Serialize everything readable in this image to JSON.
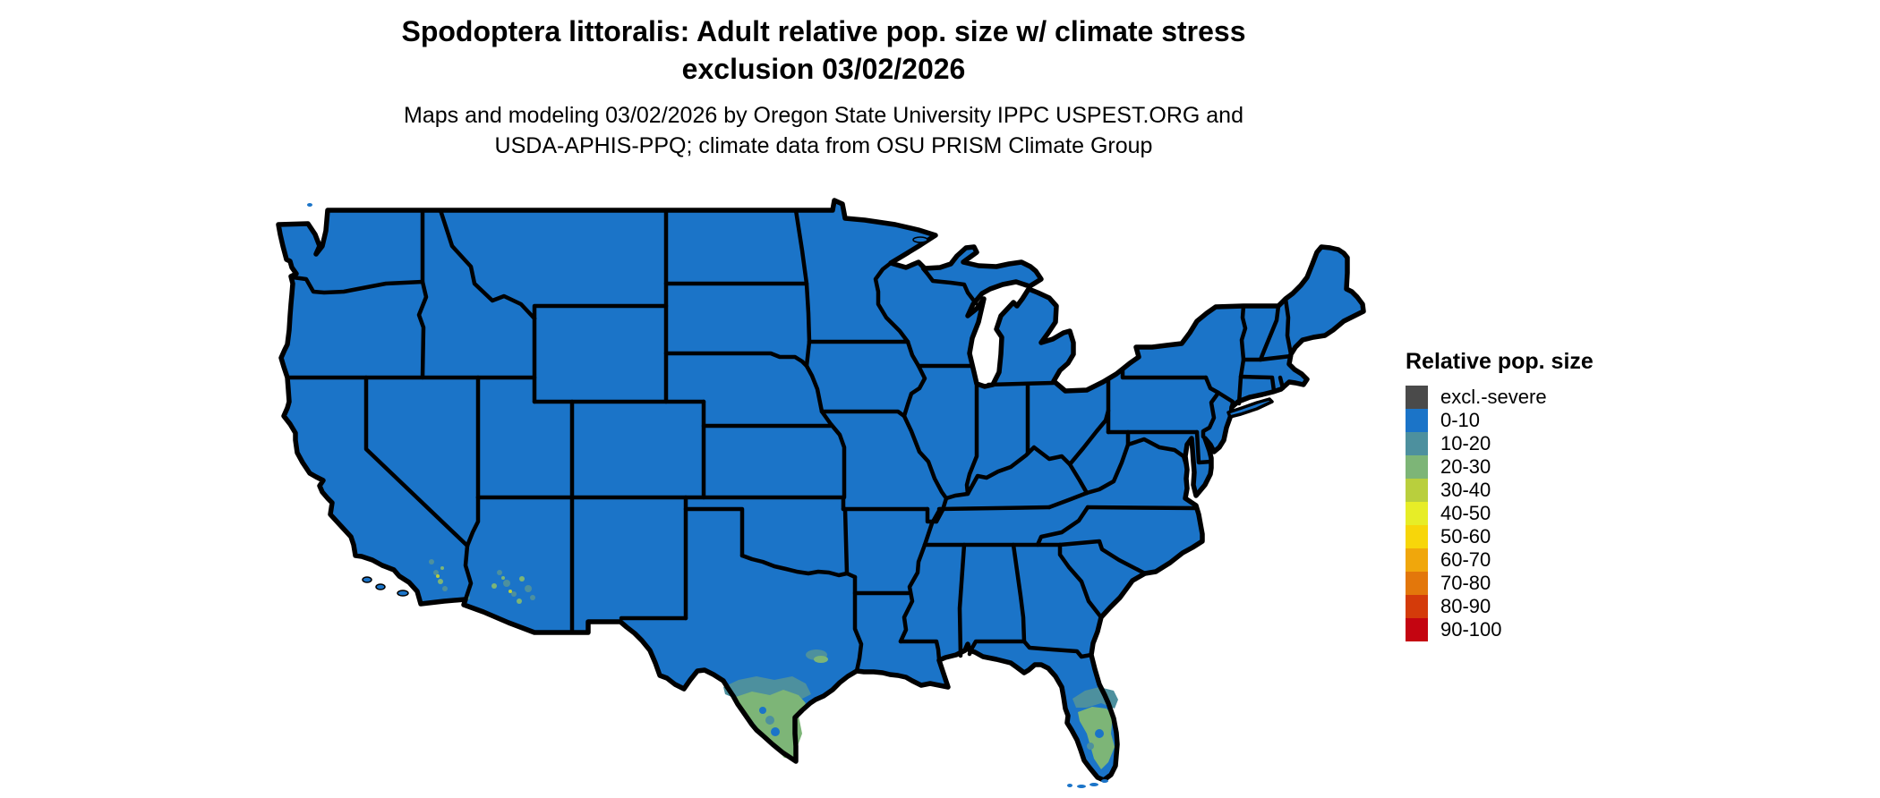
{
  "header": {
    "title_lines": [
      "Spodoptera littoralis: Adult relative pop. size w/ climate stress",
      "exclusion 03/02/2026"
    ],
    "subtitle_lines": [
      "Maps and modeling 03/02/2026 by Oregon State University IPPC USPEST.ORG and",
      "USDA-APHIS-PPQ; climate data from OSU PRISM Climate Group"
    ]
  },
  "colors": {
    "excl": "#4A4A4A",
    "b0010": "#1B74C8",
    "b1020": "#4D909E",
    "b2030": "#7DB577",
    "b3040": "#B9CF3D",
    "b4050": "#E7ED27",
    "b5060": "#F7D60A",
    "b6070": "#F0A70C",
    "b7080": "#E3770B",
    "b8090": "#D43B0A",
    "b90100": "#C40511"
  },
  "legend": {
    "title": "Relative pop. size",
    "items": [
      {
        "key": "excl",
        "label": "excl.-severe"
      },
      {
        "key": "b0010",
        "label": "0-10"
      },
      {
        "key": "b1020",
        "label": "10-20"
      },
      {
        "key": "b2030",
        "label": "20-30"
      },
      {
        "key": "b3040",
        "label": "30-40"
      },
      {
        "key": "b4050",
        "label": "40-50"
      },
      {
        "key": "b5060",
        "label": "50-60"
      },
      {
        "key": "b6070",
        "label": "60-70"
      },
      {
        "key": "b7080",
        "label": "70-80"
      },
      {
        "key": "b8090",
        "label": "80-90"
      },
      {
        "key": "b90100",
        "label": "90-100"
      }
    ]
  },
  "map_data": {
    "type": "choropleth-raster",
    "region": "Continental United States",
    "dominant_class": "0-10",
    "elevated_value_areas": [
      {
        "area": "southern Texas (Rio Grande Valley and coast)",
        "classes": [
          "10-20",
          "20-30"
        ]
      },
      {
        "area": "southern Florida",
        "classes": [
          "10-20",
          "20-30"
        ]
      },
      {
        "area": "southern Arizona",
        "classes": [
          "10-20",
          "20-30"
        ]
      },
      {
        "area": "southeastern California",
        "classes": [
          "10-20",
          "20-30"
        ]
      }
    ]
  }
}
